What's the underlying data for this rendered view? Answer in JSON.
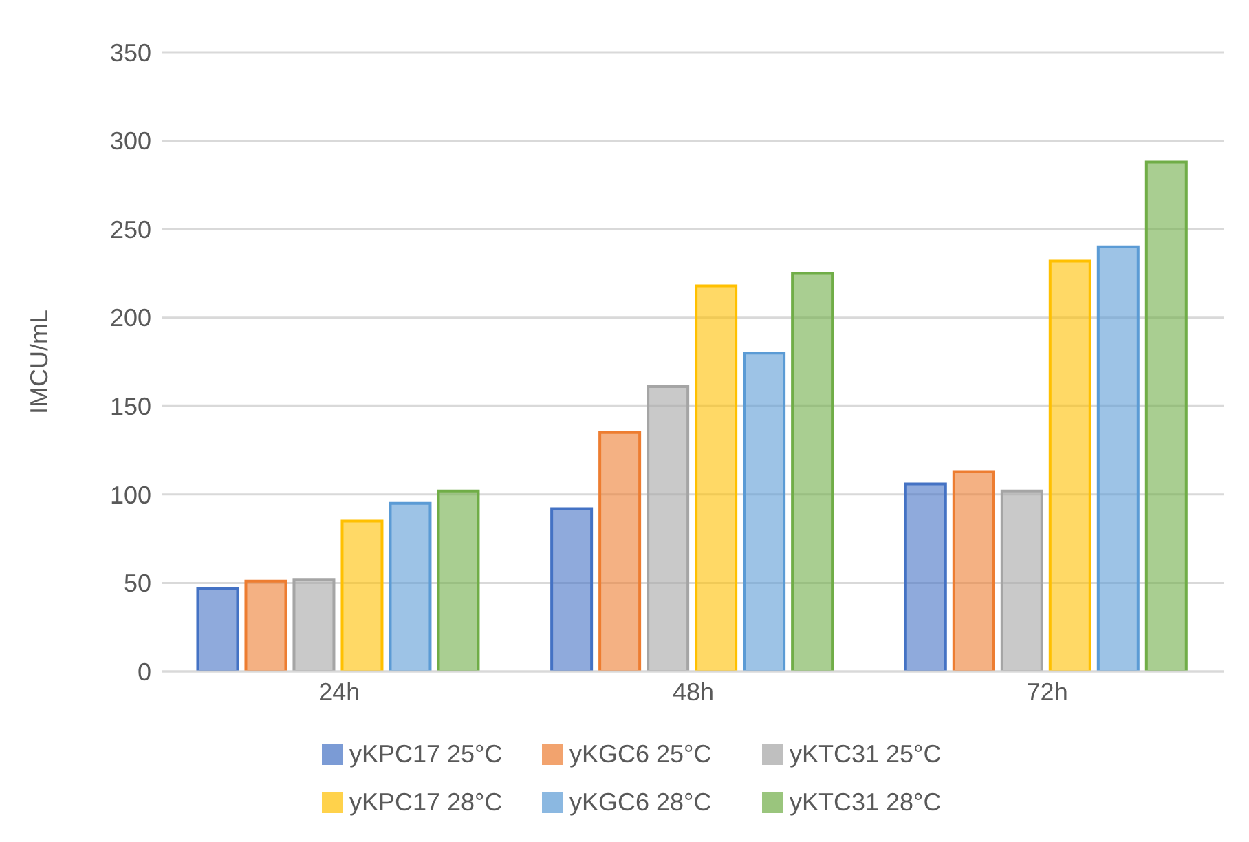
{
  "chart_data": {
    "type": "bar",
    "ylabel": "IMCU/mL",
    "categories": [
      "24h",
      "48h",
      "72h"
    ],
    "series": [
      {
        "name": "yKPC17 25°C",
        "color": "#4472c4",
        "values": [
          47,
          92,
          106
        ]
      },
      {
        "name": "yKGC6 25°C",
        "color": "#ed7d31",
        "values": [
          51,
          135,
          113
        ]
      },
      {
        "name": "yKTC31 25°C",
        "color": "#a5a5a5",
        "values": [
          52,
          161,
          102
        ]
      },
      {
        "name": "yKPC17 28°C",
        "color": "#ffc000",
        "values": [
          85,
          218,
          232
        ]
      },
      {
        "name": "yKGC6 28°C",
        "color": "#5b9bd5",
        "values": [
          95,
          180,
          240
        ]
      },
      {
        "name": "yKTC31 28°C",
        "color": "#70ad47",
        "values": [
          102,
          225,
          288
        ]
      }
    ],
    "ylim": [
      0,
      350
    ],
    "yticks": [
      0,
      50,
      100,
      150,
      200,
      250,
      300,
      350
    ],
    "grid": "y",
    "legend": "bottom"
  }
}
